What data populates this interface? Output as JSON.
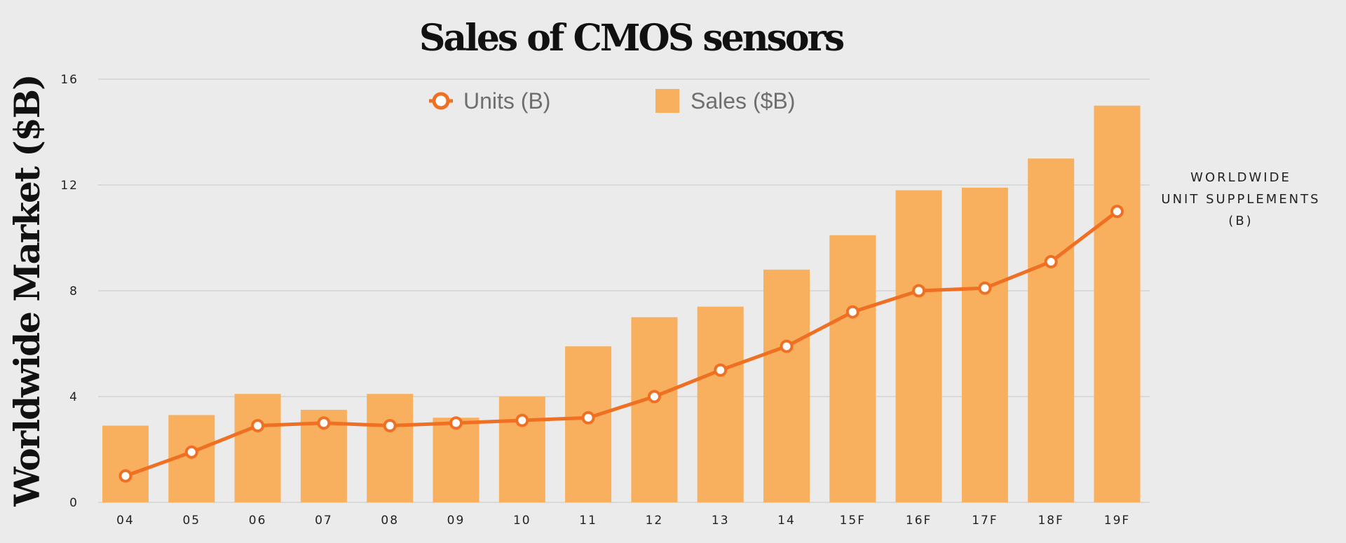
{
  "chart_data": {
    "type": "bar",
    "title": "Sales of CMOS sensors",
    "ylabel": "Worldwide Market ($B)",
    "xlabel": "",
    "categories": [
      "04",
      "05",
      "06",
      "07",
      "08",
      "09",
      "10",
      "11",
      "12",
      "13",
      "14",
      "15F",
      "16F",
      "17F",
      "18F",
      "19F"
    ],
    "ylim": [
      0,
      16
    ],
    "yticks": [
      0,
      4,
      8,
      12,
      16
    ],
    "grid": true,
    "legend_position": "top-center",
    "right_axis_label": [
      "WORLDWIDE",
      "UNIT SUPPLEMENTS",
      "(B)"
    ],
    "series": [
      {
        "name": "Units (B)",
        "type": "line",
        "color": "#f07023",
        "values": [
          1.0,
          1.9,
          2.9,
          3.0,
          2.9,
          3.0,
          3.1,
          3.2,
          4.0,
          5.0,
          5.9,
          7.2,
          8.0,
          8.1,
          9.1,
          11.0
        ]
      },
      {
        "name": "Sales ($B)",
        "type": "bar",
        "color": "#f8af5e",
        "values": [
          2.9,
          3.3,
          4.1,
          3.5,
          4.1,
          3.2,
          4.0,
          5.9,
          7.0,
          7.4,
          8.8,
          10.1,
          11.8,
          11.9,
          13.0,
          15.0
        ]
      }
    ]
  }
}
